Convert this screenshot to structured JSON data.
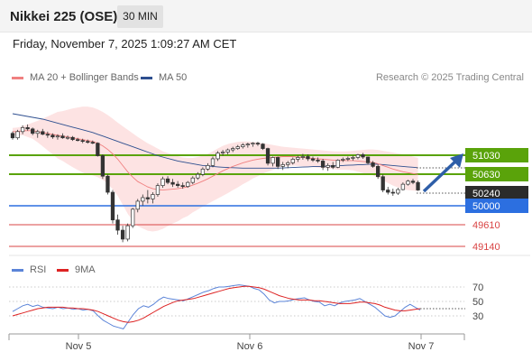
{
  "header": {
    "title": "Nikkei 225 (OSE)",
    "timeframe": "30 MIN",
    "datetime": "Friday, November 7, 2025 1:09:27 AM CET"
  },
  "legend": {
    "bb_label": "MA 20 + Bollinger Bands",
    "ma50_label": "MA 50",
    "credit": "Research © 2025 Trading Central",
    "rsi_label": "RSI",
    "ma9_label": "9MA"
  },
  "colors": {
    "resistance": "#5aa30a",
    "support": "#d94444",
    "pivot": "#2c6fe0",
    "current": "#2b2b2b",
    "arrow": "#2e5ea8",
    "bollinger_fill": "#fde3e3",
    "ma20": "#f08080",
    "ma50": "#2e4f8f",
    "rsi": "#5b84d8",
    "rsi_ma": "#dd2222"
  },
  "chart_data": [
    {
      "type": "candlestick",
      "title": "",
      "x_ticks": [
        "Nov 5",
        "Nov 6",
        "Nov 7"
      ],
      "price_levels": [
        {
          "value": 51030,
          "label": "51030",
          "role": "resistance"
        },
        {
          "value": 50630,
          "label": "50630",
          "role": "resistance"
        },
        {
          "value": 50240,
          "label": "50240",
          "role": "current"
        },
        {
          "value": 50000,
          "label": "50000",
          "role": "pivot"
        },
        {
          "value": 49610,
          "label": "49610",
          "role": "support"
        },
        {
          "value": 49140,
          "label": "49140",
          "role": "support"
        }
      ],
      "ohlc": [
        [
          51520,
          51560,
          51380,
          51420
        ],
        [
          51420,
          51600,
          51380,
          51560
        ],
        [
          51560,
          51700,
          51500,
          51650
        ],
        [
          51650,
          51720,
          51580,
          51620
        ],
        [
          51620,
          51650,
          51480,
          51520
        ],
        [
          51520,
          51600,
          51420,
          51560
        ],
        [
          51560,
          51620,
          51480,
          51500
        ],
        [
          51500,
          51560,
          51420,
          51480
        ],
        [
          51480,
          51520,
          51400,
          51440
        ],
        [
          51440,
          51500,
          51380,
          51460
        ],
        [
          51460,
          51520,
          51400,
          51420
        ],
        [
          51420,
          51470,
          51380,
          51430
        ],
        [
          51430,
          51460,
          51350,
          51380
        ],
        [
          51380,
          51420,
          51340,
          51360
        ],
        [
          51360,
          51400,
          51300,
          51340
        ],
        [
          51340,
          51380,
          51290,
          51320
        ],
        [
          51320,
          51360,
          51280,
          51300
        ],
        [
          51300,
          51320,
          51000,
          51020
        ],
        [
          51020,
          51050,
          50500,
          50560
        ],
        [
          50560,
          50600,
          50150,
          50200
        ],
        [
          50200,
          50250,
          49500,
          49580
        ],
        [
          49580,
          49700,
          49250,
          49350
        ],
        [
          49350,
          49450,
          49080,
          49150
        ],
        [
          49150,
          49500,
          49100,
          49450
        ],
        [
          49450,
          49850,
          49400,
          49820
        ],
        [
          49820,
          50050,
          49750,
          50000
        ],
        [
          50000,
          50150,
          49900,
          50080
        ],
        [
          50080,
          50250,
          49950,
          50050
        ],
        [
          50050,
          50200,
          49950,
          50150
        ],
        [
          50150,
          50400,
          50100,
          50350
        ],
        [
          50350,
          50550,
          50300,
          50500
        ],
        [
          50500,
          50560,
          50380,
          50420
        ],
        [
          50420,
          50500,
          50320,
          50380
        ],
        [
          50380,
          50450,
          50300,
          50350
        ],
        [
          50350,
          50420,
          50280,
          50330
        ],
        [
          50330,
          50450,
          50300,
          50420
        ],
        [
          50420,
          50560,
          50380,
          50520
        ],
        [
          50520,
          50650,
          50480,
          50600
        ],
        [
          50600,
          50760,
          50560,
          50720
        ],
        [
          50720,
          50850,
          50680,
          50800
        ],
        [
          50800,
          51000,
          50760,
          50950
        ],
        [
          50950,
          51120,
          50900,
          51080
        ],
        [
          51080,
          51150,
          51020,
          51100
        ],
        [
          51100,
          51180,
          51050,
          51150
        ],
        [
          51150,
          51220,
          51100,
          51180
        ],
        [
          51180,
          51260,
          51150,
          51220
        ],
        [
          51220,
          51300,
          51180,
          51260
        ],
        [
          51260,
          51310,
          51200,
          51280
        ],
        [
          51280,
          51320,
          51220,
          51300
        ],
        [
          51300,
          51330,
          51240,
          51280
        ],
        [
          51280,
          51300,
          51150,
          51180
        ],
        [
          51180,
          51200,
          50800,
          50850
        ],
        [
          50850,
          51000,
          50780,
          50980
        ],
        [
          50980,
          51000,
          50720,
          50780
        ],
        [
          50780,
          50880,
          50700,
          50820
        ],
        [
          50820,
          50900,
          50740,
          50860
        ],
        [
          50860,
          50980,
          50820,
          50940
        ],
        [
          50940,
          51020,
          50880,
          50980
        ],
        [
          50980,
          51060,
          50930,
          51000
        ],
        [
          51000,
          51050,
          50900,
          50950
        ],
        [
          50950,
          51000,
          50880,
          50920
        ],
        [
          50920,
          50980,
          50860,
          50900
        ],
        [
          50900,
          50950,
          50700,
          50760
        ],
        [
          50760,
          50850,
          50680,
          50800
        ],
        [
          50800,
          50880,
          50720,
          50760
        ],
        [
          50760,
          50940,
          50740,
          50920
        ],
        [
          50920,
          50980,
          50880,
          50940
        ],
        [
          50940,
          51000,
          50900,
          50960
        ],
        [
          50960,
          51020,
          50910,
          50980
        ],
        [
          50980,
          51060,
          50940,
          51040
        ],
        [
          51040,
          51080,
          50950,
          50990
        ],
        [
          50990,
          51000,
          50820,
          50860
        ],
        [
          50860,
          50900,
          50750,
          50780
        ],
        [
          50780,
          50820,
          50500,
          50550
        ],
        [
          50550,
          50600,
          50200,
          50250
        ],
        [
          50250,
          50320,
          50150,
          50200
        ],
        [
          50200,
          50280,
          50120,
          50180
        ],
        [
          50180,
          50300,
          50140,
          50260
        ],
        [
          50260,
          50420,
          50240,
          50380
        ],
        [
          50380,
          50480,
          50350,
          50450
        ],
        [
          50450,
          50500,
          50380,
          50420
        ],
        [
          50420,
          50460,
          50230,
          50250
        ]
      ],
      "ma20": [
        51560,
        51560,
        51580,
        51580,
        51580,
        51560,
        51540,
        51520,
        51500,
        51480,
        51460,
        51440,
        51420,
        51400,
        51380,
        51360,
        51340,
        51300,
        51240,
        51160,
        51060,
        50940,
        50800,
        50660,
        50540,
        50440,
        50380,
        50320,
        50280,
        50260,
        50250,
        50260,
        50270,
        50280,
        50300,
        50320,
        50360,
        50400,
        50450,
        50500,
        50560,
        50620,
        50680,
        50730,
        50780,
        50820,
        50860,
        50890,
        50920,
        50940,
        50960,
        50970,
        50980,
        50990,
        51000,
        51000,
        51000,
        50990,
        50980,
        50970,
        50960,
        50950,
        50940,
        50930,
        50920,
        50910,
        50910,
        50910,
        50910,
        50900,
        50890,
        50880,
        50870,
        50840,
        50800,
        50760,
        50720,
        50690,
        50660,
        50640,
        50620,
        50600
      ],
      "ma50": [
        51960,
        51940,
        51920,
        51900,
        51880,
        51860,
        51840,
        51810,
        51780,
        51750,
        51720,
        51690,
        51660,
        51630,
        51600,
        51570,
        51540,
        51500,
        51460,
        51420,
        51380,
        51340,
        51300,
        51260,
        51220,
        51180,
        51140,
        51100,
        51060,
        51020,
        50990,
        50960,
        50930,
        50900,
        50880,
        50860,
        50840,
        50820,
        50800,
        50790,
        50780,
        50770,
        50760,
        50755,
        50750,
        50745,
        50740,
        50740,
        50740,
        50740,
        50740,
        50740,
        50740,
        50740,
        50745,
        50750,
        50755,
        50760,
        50765,
        50770,
        50775,
        50780,
        50780,
        50785,
        50790,
        50795,
        50800,
        50805,
        50810,
        50815,
        50820,
        50825,
        50830,
        50830,
        50820,
        50810,
        50800,
        50790,
        50780,
        50770,
        50760,
        50750
      ],
      "bollinger_upper": [
        51640,
        51650,
        51680,
        51720,
        51760,
        51800,
        51850,
        51900,
        51950,
        52000,
        52020,
        52050,
        52080,
        52100,
        52120,
        52120,
        52100,
        52060,
        52000,
        51930,
        51850,
        51760,
        51680,
        51600,
        51520,
        51440,
        51370,
        51300,
        51240,
        51180,
        51120,
        51080,
        51040,
        51010,
        50980,
        50970,
        50970,
        50990,
        51020,
        51060,
        51120,
        51180,
        51240,
        51280,
        51310,
        51330,
        51340,
        51340,
        51330,
        51320,
        51300,
        51280,
        51260,
        51240,
        51220,
        51210,
        51200,
        51190,
        51180,
        51170,
        51160,
        51150,
        51140,
        51130,
        51120,
        51115,
        51115,
        51120,
        51130,
        51140,
        51150,
        51160,
        51160,
        51150,
        51130,
        51110,
        51090,
        51070,
        51050,
        51030,
        51000,
        50970
      ],
      "bollinger_lower": [
        51480,
        51470,
        51480,
        51440,
        51400,
        51320,
        51230,
        51140,
        51050,
        50960,
        50900,
        50830,
        50760,
        50700,
        50640,
        50600,
        50580,
        50540,
        50480,
        50390,
        50270,
        50120,
        49920,
        49720,
        49560,
        49440,
        49390,
        49340,
        49320,
        49340,
        49380,
        49440,
        49500,
        49550,
        49620,
        49670,
        49750,
        49810,
        49880,
        49940,
        50000,
        50060,
        50120,
        50180,
        50250,
        50310,
        50380,
        50440,
        50510,
        50560,
        50620,
        50660,
        50700,
        50740,
        50780,
        50790,
        50800,
        50790,
        50780,
        50770,
        50760,
        50750,
        50740,
        50730,
        50720,
        50705,
        50705,
        50700,
        50690,
        50660,
        50630,
        50600,
        50580,
        50530,
        50470,
        50410,
        50350,
        50310,
        50270,
        50250,
        50240,
        50230
      ],
      "forecast_arrow": {
        "from": 50240,
        "to": 51030
      }
    },
    {
      "type": "line",
      "title": "",
      "y_ticks": [
        70,
        50,
        30
      ],
      "ylim": [
        0,
        100
      ],
      "series": [
        {
          "name": "RSI",
          "values": [
            36,
            40,
            44,
            46,
            43,
            45,
            42,
            41,
            40,
            42,
            40,
            41,
            39,
            40,
            38,
            39,
            37,
            30,
            24,
            20,
            16,
            14,
            12,
            22,
            32,
            40,
            44,
            42,
            46,
            52,
            56,
            54,
            53,
            52,
            51,
            54,
            57,
            60,
            63,
            65,
            68,
            70,
            70,
            71,
            72,
            73,
            72,
            71,
            68,
            66,
            60,
            52,
            48,
            50,
            50,
            51,
            53,
            54,
            55,
            52,
            50,
            49,
            44,
            46,
            44,
            48,
            50,
            51,
            52,
            54,
            50,
            46,
            42,
            36,
            30,
            28,
            30,
            36,
            42,
            46,
            42,
            38
          ]
        },
        {
          "name": "9MA",
          "values": [
            30,
            32,
            34,
            36,
            38,
            40,
            41,
            42,
            42,
            42,
            42,
            41,
            41,
            40,
            40,
            39,
            38,
            36,
            33,
            30,
            27,
            24,
            22,
            21,
            22,
            24,
            27,
            31,
            35,
            39,
            43,
            46,
            49,
            51,
            52,
            53,
            54,
            56,
            58,
            60,
            62,
            64,
            66,
            68,
            69,
            70,
            71,
            71,
            70,
            69,
            67,
            64,
            61,
            58,
            56,
            54,
            53,
            52,
            52,
            52,
            51,
            51,
            50,
            49,
            48,
            47,
            47,
            47,
            48,
            49,
            49,
            48,
            47,
            45,
            42,
            40,
            38,
            37,
            37,
            38,
            39,
            40
          ]
        }
      ]
    }
  ]
}
